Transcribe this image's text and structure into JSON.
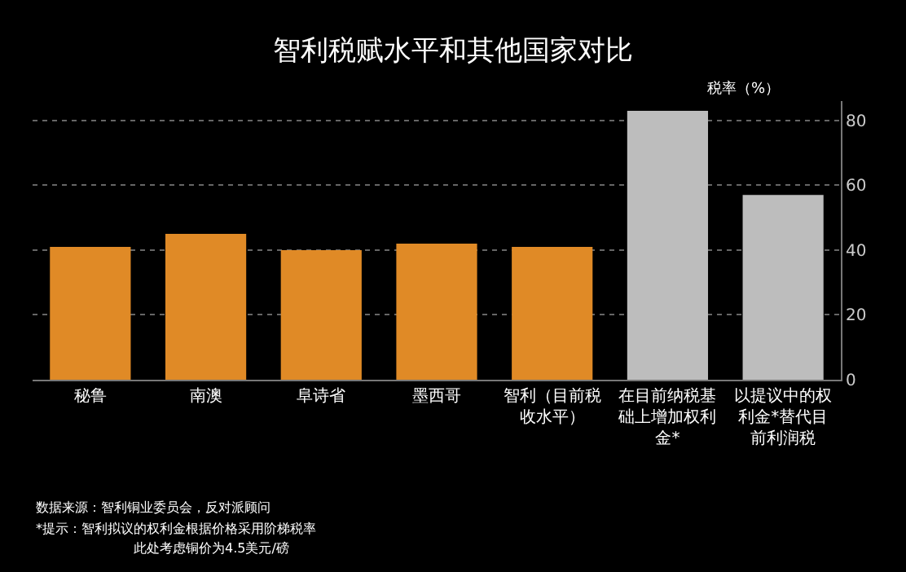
{
  "chart_data": {
    "type": "bar",
    "title": "智利税赋水平和其他国家对比",
    "ylabel": "税率（%）",
    "categories": [
      "秘鲁",
      "南澳",
      "阜诗省",
      "墨西哥",
      "智利（目前税收水平）",
      "在目前纳税基础上增加权利金*",
      "以提议中的权利金*替代目前利润税"
    ],
    "values": [
      41,
      45,
      40,
      42,
      41,
      83,
      57
    ],
    "colors": [
      "#e08a26",
      "#e08a26",
      "#e08a26",
      "#e08a26",
      "#e08a26",
      "#bdbdbd",
      "#bdbdbd"
    ],
    "ylim": [
      0,
      86
    ],
    "yticks": [
      0,
      20,
      40,
      60,
      80
    ],
    "grid": "y",
    "annotations": [
      "数据来源：智利铜业委员会，反对派顾问",
      "*提示：智利拟议的权利金根据价格采用阶梯税率",
      "此处考虑铜价为4.5美元/磅"
    ]
  }
}
